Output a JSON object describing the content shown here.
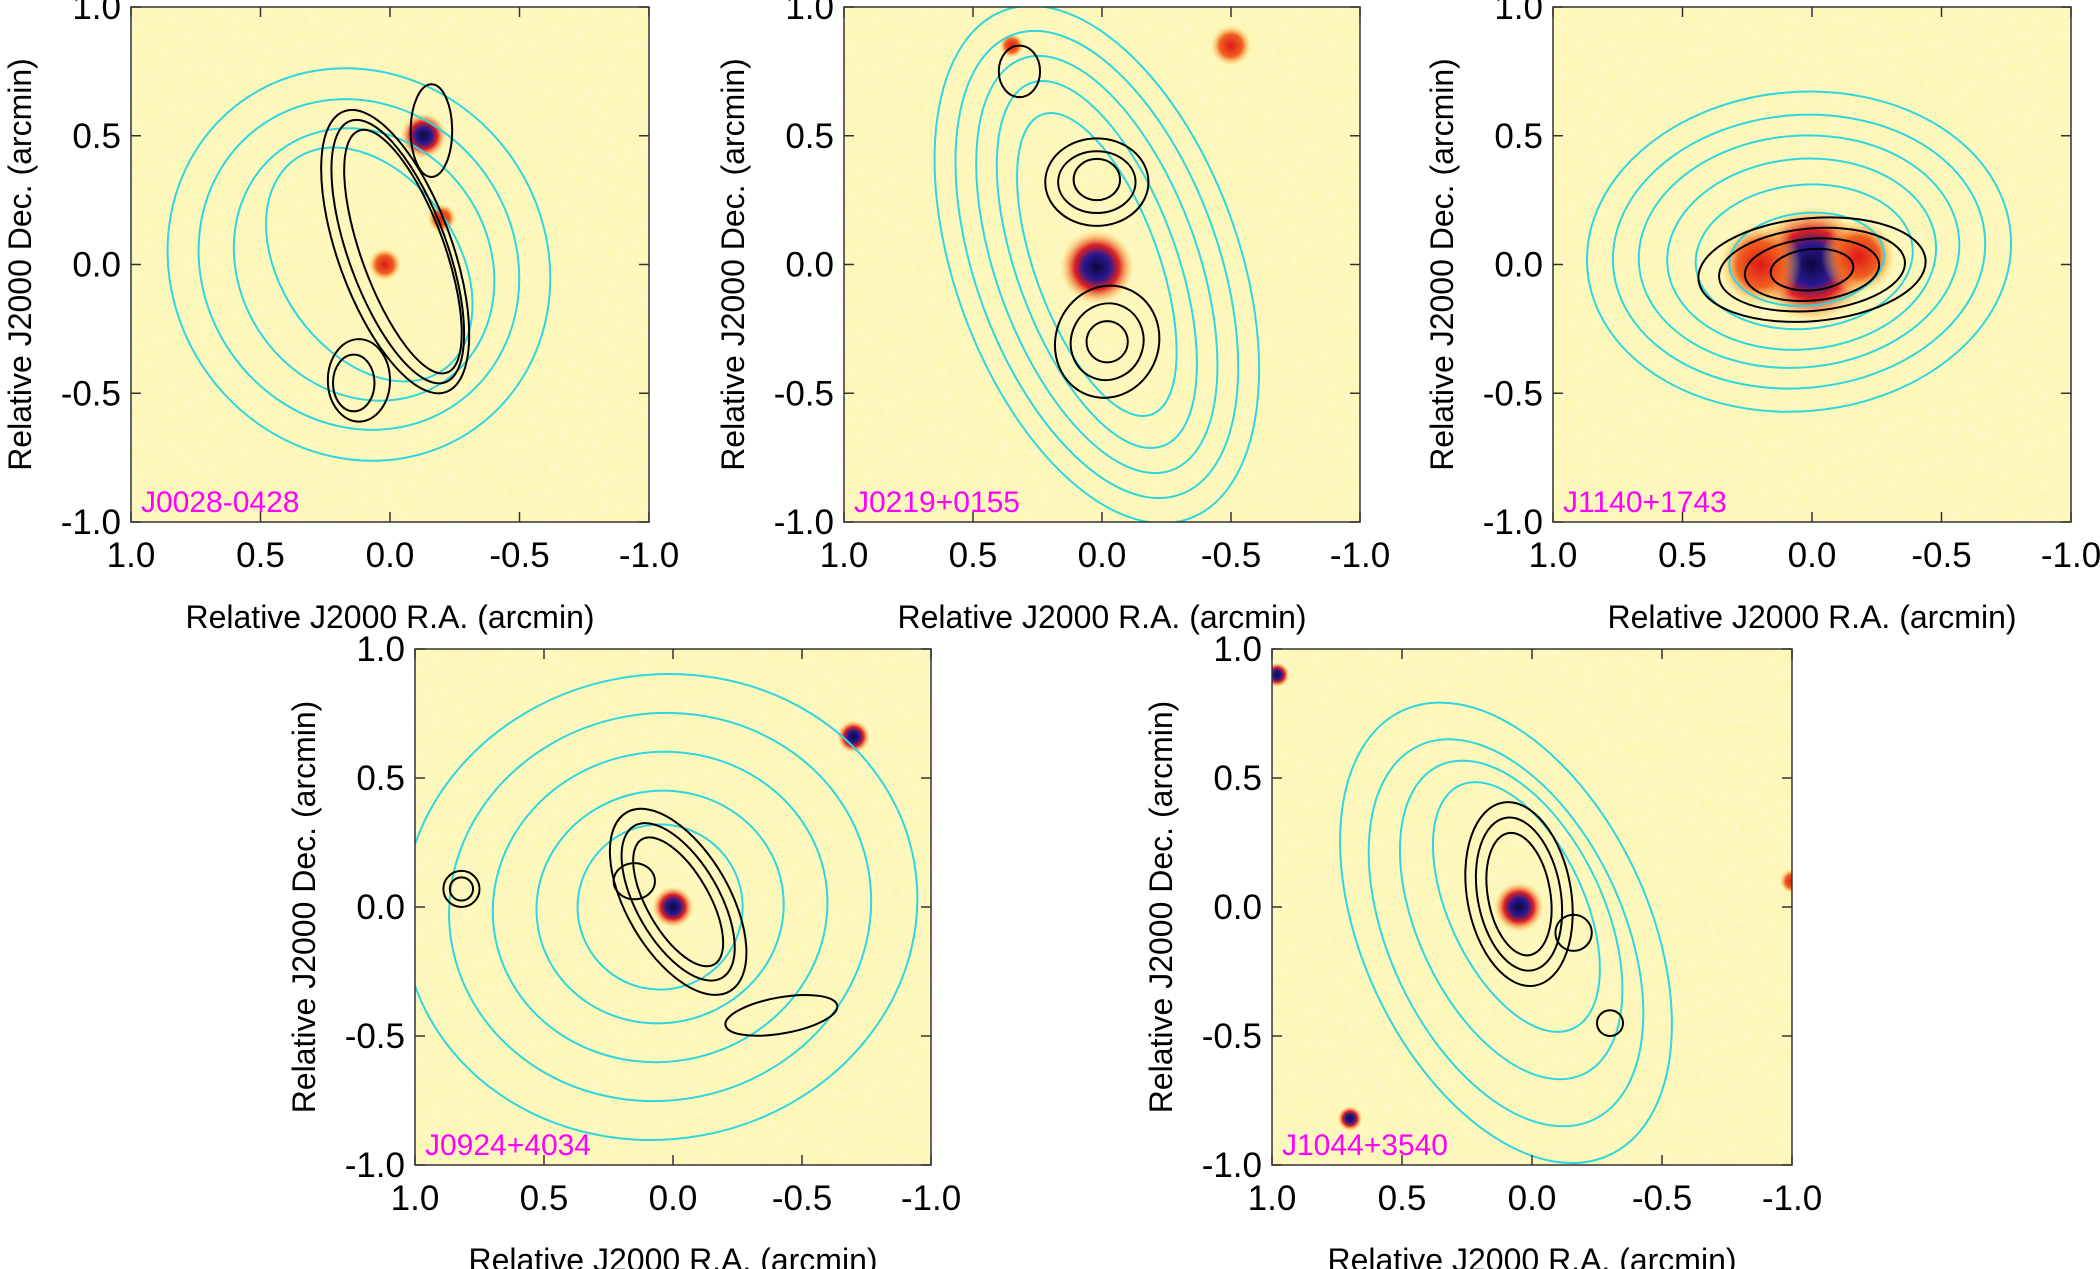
{
  "axes": {
    "xlabel": "Relative J2000 R.A. (arcmin)",
    "ylabel": "Relative J2000 Dec. (arcmin)",
    "xticks": [
      "1.0",
      "0.5",
      "0.0",
      "-0.5",
      "-1.0"
    ],
    "yticks": [
      "1.0",
      "0.5",
      "0.0",
      "-0.5",
      "-1.0"
    ],
    "xlim": [
      1.0,
      -1.0
    ],
    "ylim": [
      -1.0,
      1.0
    ]
  },
  "colors": {
    "background": "#fdf6b0",
    "radio_contours_low": "#2fd6e0",
    "radio_contours_high": "#000000",
    "label": "#ff00ff",
    "hotspot": "#e8201a",
    "core": "#20107a"
  },
  "panels": [
    {
      "name": "J0028-0428"
    },
    {
      "name": "J0219+0155"
    },
    {
      "name": "J1140+1743"
    },
    {
      "name": "J0924+4034"
    },
    {
      "name": "J1044+3540"
    }
  ]
}
